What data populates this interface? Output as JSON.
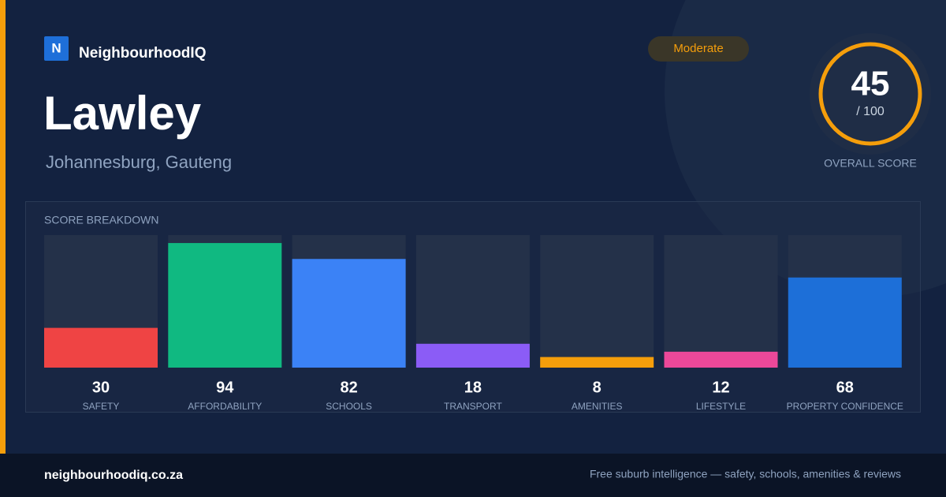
{
  "brand": {
    "logo": "N",
    "name": "NeighbourhoodIQ"
  },
  "badge": "Moderate",
  "place": {
    "name": "Lawley",
    "location": "Johannesburg, Gauteng"
  },
  "score": {
    "value": 45,
    "max_label": "/ 100",
    "caption": "OVERALL SCORE"
  },
  "breakdown": {
    "title": "SCORE BREAKDOWN",
    "ylim": [
      0,
      100
    ],
    "items": [
      {
        "label": "SAFETY",
        "value": 30,
        "color": "#ef4444"
      },
      {
        "label": "AFFORDABILITY",
        "value": 94,
        "color": "#10b981"
      },
      {
        "label": "SCHOOLS",
        "value": 82,
        "color": "#3b82f6"
      },
      {
        "label": "TRANSPORT",
        "value": 18,
        "color": "#8b5cf6"
      },
      {
        "label": "AMENITIES",
        "value": 8,
        "color": "#f59e0b"
      },
      {
        "label": "LIFESTYLE",
        "value": 12,
        "color": "#ec4899"
      },
      {
        "label": "PROPERTY CONFIDENCE",
        "value": 68,
        "color": "#1d6fd8"
      }
    ]
  },
  "footer": {
    "domain": "neighbourhoodiq.co.za",
    "tagline": "Free suburb intelligence — safety, schools, amenities & reviews"
  }
}
